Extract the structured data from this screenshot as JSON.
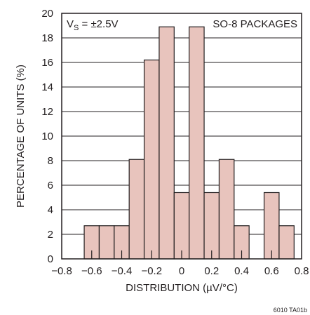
{
  "chart_data": {
    "type": "bar",
    "xlabel": "DISTRIBUTION (µV/°C)",
    "ylabel": "PERCENTAGE OF UNITS (%)",
    "xlim": [
      -0.8,
      0.8
    ],
    "ylim": [
      0,
      20
    ],
    "x_ticks": [
      "−0.8",
      "−0.6",
      "−0.4",
      "−0.2",
      "0",
      "0.2",
      "0.4",
      "0.6",
      "0.8"
    ],
    "y_ticks": [
      "0",
      "2",
      "4",
      "6",
      "8",
      "10",
      "12",
      "14",
      "16",
      "18",
      "20"
    ],
    "grid": "horizontal",
    "bar_width": 0.1,
    "bar_color": "#e8c4bd",
    "edge_color": "#231f20",
    "categories": [
      "-0.6",
      "-0.5",
      "-0.4",
      "-0.3",
      "-0.2",
      "-0.1",
      "0",
      "0.1",
      "0.2",
      "0.3",
      "0.4",
      "0.5",
      "0.6",
      "0.7"
    ],
    "values": [
      2.7,
      2.7,
      2.7,
      8.1,
      16.2,
      18.9,
      5.4,
      18.9,
      5.4,
      8.1,
      2.7,
      0,
      5.4,
      2.7
    ],
    "annotations": {
      "condition_main": "V",
      "condition_sub": "S",
      "condition_rest": " = ±2.5V",
      "package": "SO-8 PACKAGES"
    },
    "figure_ref": "6010 TA01b"
  }
}
